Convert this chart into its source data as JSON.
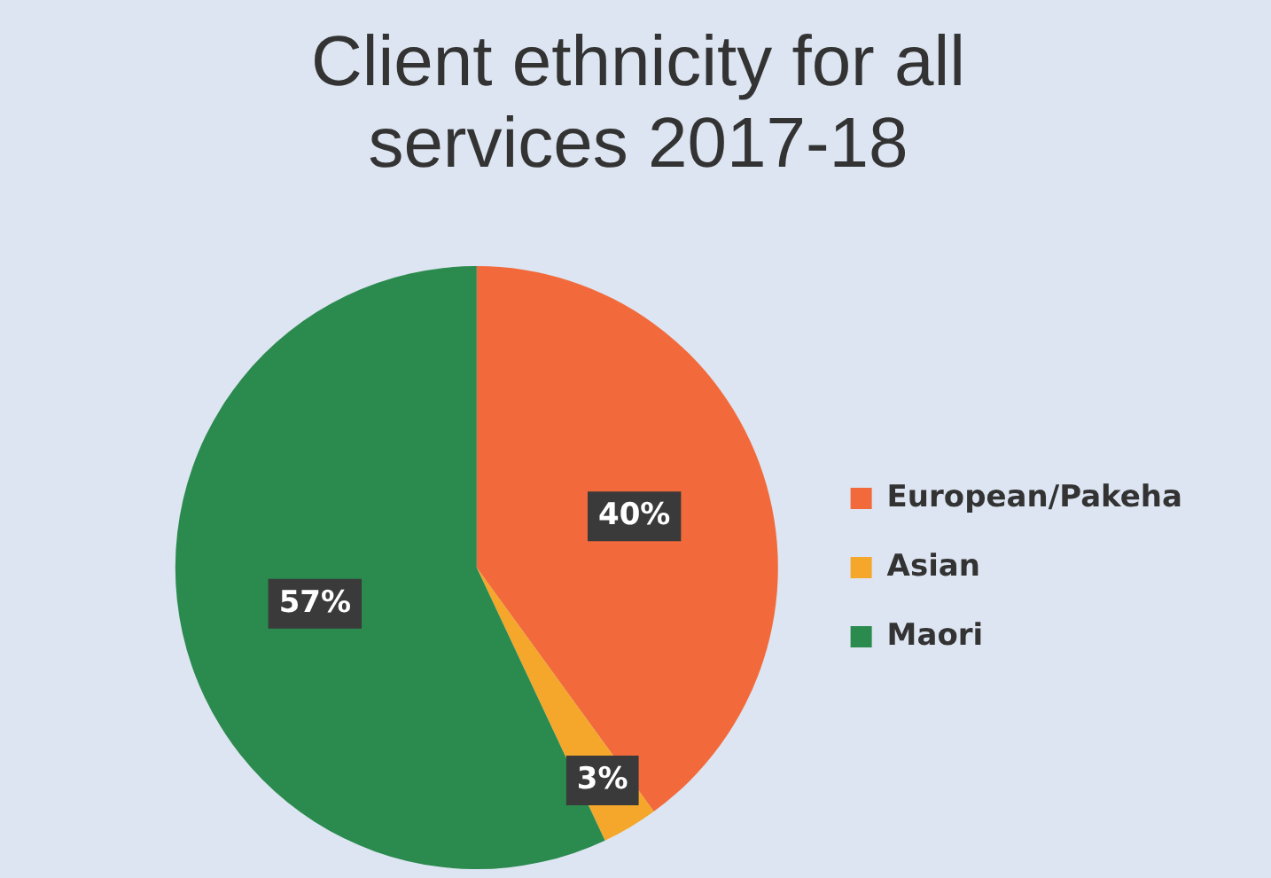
{
  "chart_data": {
    "type": "pie",
    "title": "Client ethnicity for all services 2017-18",
    "categories": [
      "European/Pakeha",
      "Asian",
      "Maori"
    ],
    "values": [
      40,
      3,
      57
    ],
    "colors": [
      "#f26a3c",
      "#f4a72a",
      "#2b8a4e"
    ],
    "value_labels": [
      "40%",
      "3%",
      "57%"
    ],
    "legend": "right"
  }
}
